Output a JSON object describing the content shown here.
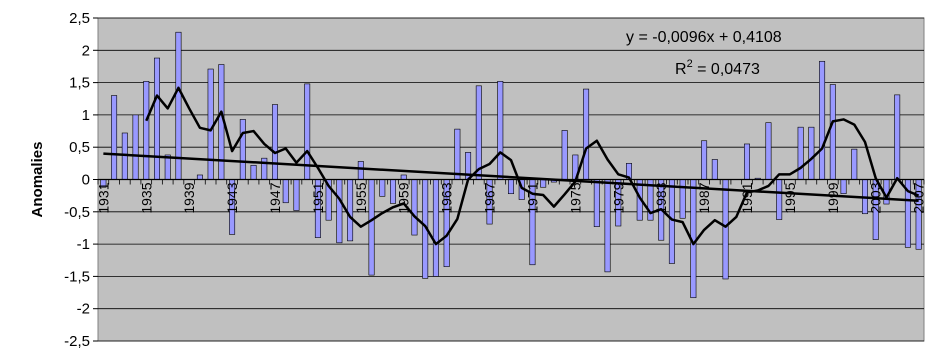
{
  "chart_data": {
    "type": "bar",
    "ylabel": "Anomalies",
    "xlabel": "",
    "ylim": [
      -2.5,
      2.5
    ],
    "yticks": [
      "2,5",
      "2",
      "1,5",
      "1",
      "0,5",
      "0",
      "-0,5",
      "-1",
      "-1,5",
      "-2",
      "-2,5"
    ],
    "grid": true,
    "plot_background": "#c0c0c0",
    "bar_color": "#9999ff",
    "line_color": "#000000",
    "x": [
      1931,
      1932,
      1933,
      1934,
      1935,
      1936,
      1937,
      1938,
      1939,
      1940,
      1941,
      1942,
      1943,
      1944,
      1945,
      1946,
      1947,
      1948,
      1949,
      1950,
      1951,
      1952,
      1953,
      1954,
      1955,
      1956,
      1957,
      1958,
      1959,
      1960,
      1961,
      1962,
      1963,
      1964,
      1965,
      1966,
      1967,
      1968,
      1969,
      1970,
      1971,
      1972,
      1973,
      1974,
      1975,
      1976,
      1977,
      1978,
      1979,
      1980,
      1981,
      1982,
      1983,
      1984,
      1985,
      1986,
      1987,
      1988,
      1989,
      1990,
      1991,
      1992,
      1993,
      1994,
      1995,
      1996,
      1997,
      1998,
      1999,
      2000,
      2001,
      2002,
      2003,
      2004,
      2005,
      2006,
      2007
    ],
    "x_tick_labels": [
      "1931",
      "1935",
      "1939",
      "1943",
      "1947",
      "1951",
      "1955",
      "1959",
      "1963",
      "1967",
      "1971",
      "1975",
      "1979",
      "1983",
      "1987",
      "1991",
      "1995",
      "1999",
      "2003",
      "2007"
    ],
    "series": [
      {
        "type": "bar",
        "values": [
          -0.12,
          1.3,
          0.72,
          1.0,
          1.52,
          1.88,
          0.38,
          2.28,
          0.0,
          0.07,
          1.71,
          1.78,
          -0.85,
          0.93,
          0.22,
          0.33,
          1.16,
          -0.36,
          -0.48,
          1.48,
          -0.9,
          -0.63,
          -0.98,
          -0.95,
          0.28,
          -1.48,
          -0.26,
          -0.37,
          0.07,
          -0.86,
          -1.53,
          -1.5,
          -1.35,
          0.78,
          0.42,
          1.45,
          -0.69,
          1.52,
          -0.22,
          -0.31,
          -1.32,
          -0.12,
          -0.04,
          0.76,
          0.38,
          1.4,
          -0.73,
          -1.43,
          -0.72,
          0.25,
          -0.63,
          -0.63,
          -0.94,
          -1.3,
          -0.6,
          -1.83,
          0.6,
          0.31,
          -1.54,
          0.0,
          0.55,
          0.02,
          0.88,
          -0.62,
          0.0,
          0.81,
          0.81,
          1.83,
          1.47,
          -0.22,
          0.47,
          -0.53,
          -0.93,
          -0.38,
          1.31,
          -1.05,
          -1.08
        ]
      },
      {
        "type": "line",
        "values": [
          null,
          null,
          null,
          null,
          0.91,
          1.3,
          1.1,
          1.42,
          1.1,
          0.8,
          0.76,
          1.05,
          0.44,
          0.72,
          0.75,
          0.55,
          0.41,
          0.48,
          0.26,
          0.44,
          0.18,
          -0.1,
          -0.3,
          -0.58,
          -0.73,
          -0.63,
          -0.52,
          -0.43,
          -0.37,
          -0.57,
          -0.72,
          -1.0,
          -0.87,
          -0.61,
          0.0,
          0.16,
          0.24,
          0.42,
          0.3,
          -0.13,
          -0.22,
          -0.24,
          -0.42,
          -0.23,
          -0.03,
          0.48,
          0.6,
          0.31,
          0.08,
          0.03,
          -0.28,
          -0.52,
          -0.46,
          -0.62,
          -0.66,
          -1.0,
          -0.78,
          -0.63,
          -0.73,
          -0.58,
          -0.2,
          -0.17,
          -0.1,
          0.08,
          0.08,
          0.18,
          0.32,
          0.48,
          0.9,
          0.93,
          0.85,
          0.58,
          0.02,
          -0.28,
          0.02,
          -0.18,
          -0.25
        ]
      }
    ],
    "trendline": {
      "slope": -0.0096,
      "intercept": 0.4108
    },
    "annotations": [
      "y = -0,0096x + 0,4108",
      "R",
      "2",
      " = 0,0473"
    ]
  }
}
